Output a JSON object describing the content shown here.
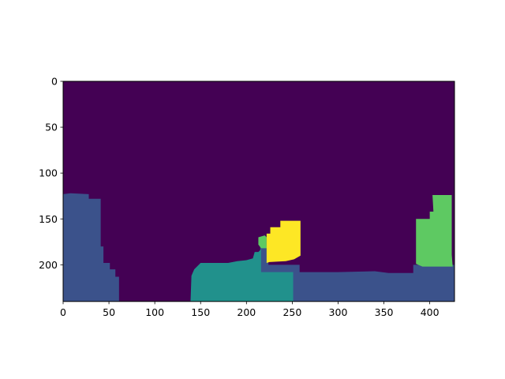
{
  "chart_data": {
    "type": "heatmap",
    "title": "",
    "xlabel": "",
    "ylabel": "",
    "image_shape": [
      240,
      427
    ],
    "xlim": [
      0,
      427
    ],
    "ylim": [
      240,
      0
    ],
    "y_inverted": true,
    "x_ticks": [
      0,
      50,
      100,
      150,
      200,
      250,
      300,
      350,
      400
    ],
    "y_ticks": [
      0,
      50,
      100,
      150,
      200
    ],
    "grid": false,
    "legend": "none",
    "colormap": "viridis",
    "background_class_color": "#440154",
    "label_colors": {
      "background": "#440154",
      "class_1": "#3b528b",
      "class_2": "#21918c",
      "class_3": "#5ec962",
      "class_4": "#fde725"
    },
    "regions": [
      {
        "label": "class_1",
        "color": "#3b528b",
        "outline": [
          [
            0,
            123
          ],
          [
            8,
            122
          ],
          [
            28,
            123
          ],
          [
            28,
            128
          ],
          [
            41,
            128
          ],
          [
            41,
            180
          ],
          [
            44,
            180
          ],
          [
            44,
            198
          ],
          [
            51,
            198
          ],
          [
            51,
            205
          ],
          [
            57,
            205
          ],
          [
            57,
            213
          ],
          [
            61,
            213
          ],
          [
            61,
            240
          ],
          [
            0,
            240
          ]
        ]
      },
      {
        "label": "class_1",
        "color": "#3b528b",
        "outline": [
          [
            140,
            240
          ],
          [
            140,
            220
          ],
          [
            215,
            216
          ],
          [
            215,
            180
          ],
          [
            224,
            180
          ],
          [
            224,
            200
          ],
          [
            258,
            200
          ],
          [
            258,
            208
          ],
          [
            300,
            208
          ],
          [
            340,
            207
          ],
          [
            355,
            209
          ],
          [
            375,
            209
          ],
          [
            382,
            209
          ],
          [
            382,
            200
          ],
          [
            427,
            200
          ],
          [
            427,
            240
          ]
        ]
      },
      {
        "label": "class_2",
        "color": "#21918c",
        "outline": [
          [
            139,
            240
          ],
          [
            140,
            212
          ],
          [
            143,
            205
          ],
          [
            150,
            198
          ],
          [
            180,
            198
          ],
          [
            190,
            196
          ],
          [
            200,
            195
          ],
          [
            207,
            193
          ],
          [
            209,
            186
          ],
          [
            213,
            186
          ],
          [
            216,
            183
          ],
          [
            216,
            208
          ],
          [
            251,
            208
          ],
          [
            251,
            240
          ]
        ]
      },
      {
        "label": "class_3",
        "color": "#5ec962",
        "outline": [
          [
            213,
            170
          ],
          [
            220,
            168
          ],
          [
            222,
            170
          ],
          [
            222,
            182
          ],
          [
            216,
            182
          ],
          [
            213,
            178
          ]
        ]
      },
      {
        "label": "class_3",
        "color": "#5ec962",
        "outline": [
          [
            403,
            124
          ],
          [
            424,
            124
          ],
          [
            424,
            189
          ],
          [
            425,
            202
          ],
          [
            392,
            202
          ],
          [
            385,
            199
          ],
          [
            385,
            150
          ],
          [
            400,
            150
          ],
          [
            400,
            142
          ],
          [
            404,
            142
          ]
        ]
      },
      {
        "label": "class_4",
        "color": "#fde725",
        "outline": [
          [
            226,
            159
          ],
          [
            237,
            159
          ],
          [
            237,
            152
          ],
          [
            259,
            152
          ],
          [
            259,
            190
          ],
          [
            252,
            194
          ],
          [
            243,
            196
          ],
          [
            225,
            197
          ],
          [
            222,
            198
          ],
          [
            222,
            166
          ],
          [
            226,
            166
          ]
        ]
      }
    ]
  }
}
